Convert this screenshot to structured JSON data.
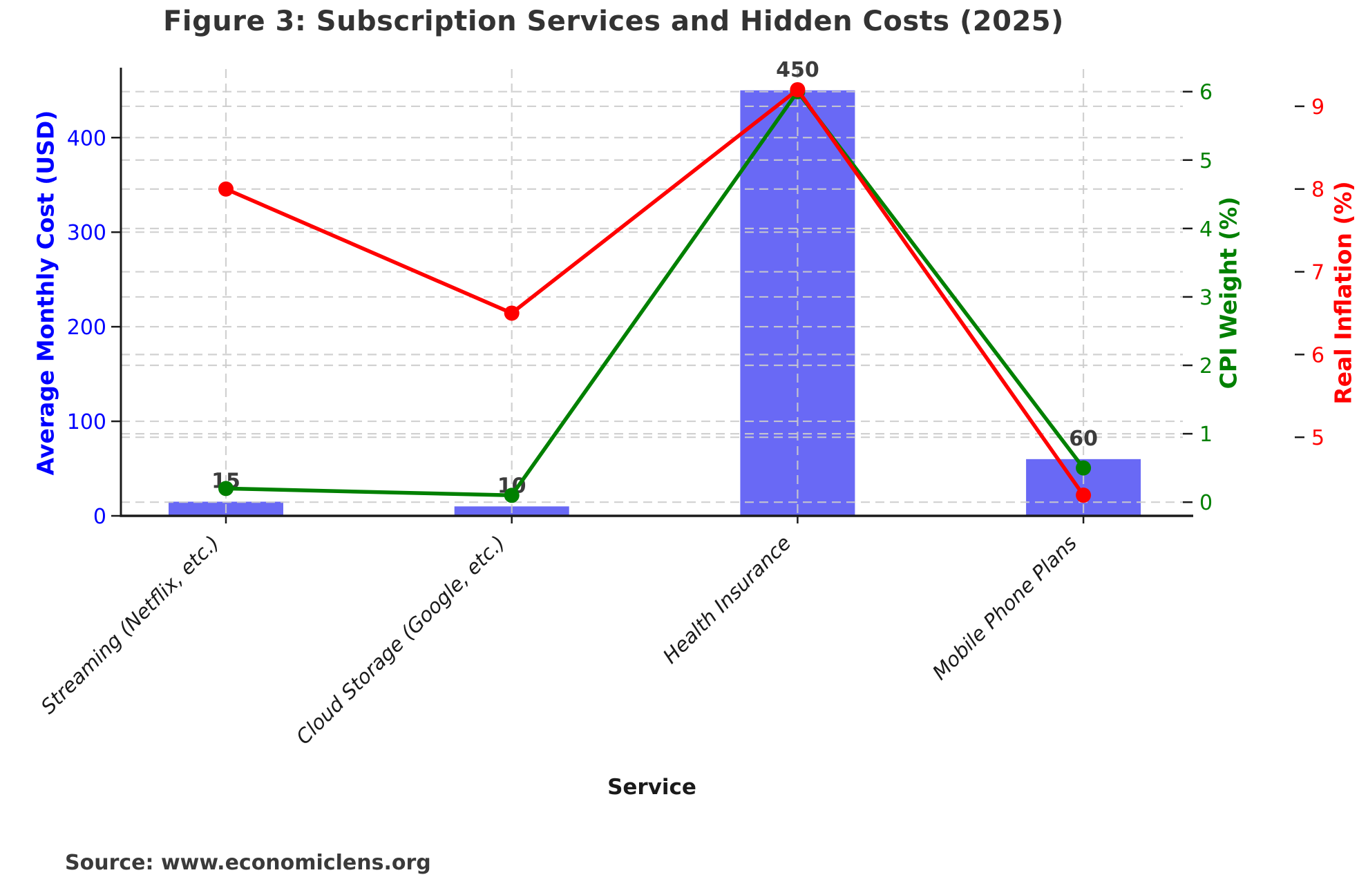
{
  "chart_data": {
    "type": "bar",
    "title": "Figure 3: Subscription Services and Hidden Costs (2025)",
    "xlabel": "Service",
    "source": "Source: www.economiclens.org",
    "categories": [
      "Streaming (Netflix, etc.)",
      "Cloud Storage (Google, etc.)",
      "Health Insurance",
      "Mobile Phone Plans"
    ],
    "series": [
      {
        "name": "Average Monthly Cost (USD)",
        "kind": "bar",
        "axis": "left",
        "color": "#6969f5",
        "values": [
          15,
          10,
          450,
          60
        ],
        "value_labels": [
          "15",
          "10",
          "450",
          "60"
        ]
      },
      {
        "name": "CPI Weight (%)",
        "kind": "line",
        "axis": "cpi",
        "color": "#008000",
        "values": [
          0.2,
          0.1,
          6.0,
          0.5
        ]
      },
      {
        "name": "Real Inflation (%)",
        "kind": "line",
        "axis": "inflation",
        "color": "#ff0000",
        "values": [
          8.0,
          6.5,
          9.2,
          4.3
        ]
      }
    ],
    "axes": {
      "left": {
        "label": "Average Monthly Cost (USD)",
        "color": "#0000ff",
        "ticks": [
          0,
          100,
          200,
          300,
          400
        ],
        "range": [
          0,
          472.5
        ],
        "side": "left"
      },
      "cpi": {
        "label": "CPI Weight (%)",
        "color": "#008000",
        "ticks": [
          0,
          1,
          2,
          3,
          4,
          5,
          6
        ],
        "range": [
          -0.2,
          6.33
        ],
        "side": "right"
      },
      "inflation": {
        "label": "Real Inflation (%)",
        "color": "#ff0000",
        "ticks": [
          5,
          6,
          7,
          8,
          9
        ],
        "range": [
          4.05,
          9.45
        ],
        "side": "far-right"
      }
    },
    "grid": {
      "visible": true,
      "style": "dashed",
      "color": "#cccccc"
    },
    "value_label_color": "#3c3c3c",
    "tick_label_color_x": "#1a1a1a",
    "legend": "none"
  }
}
